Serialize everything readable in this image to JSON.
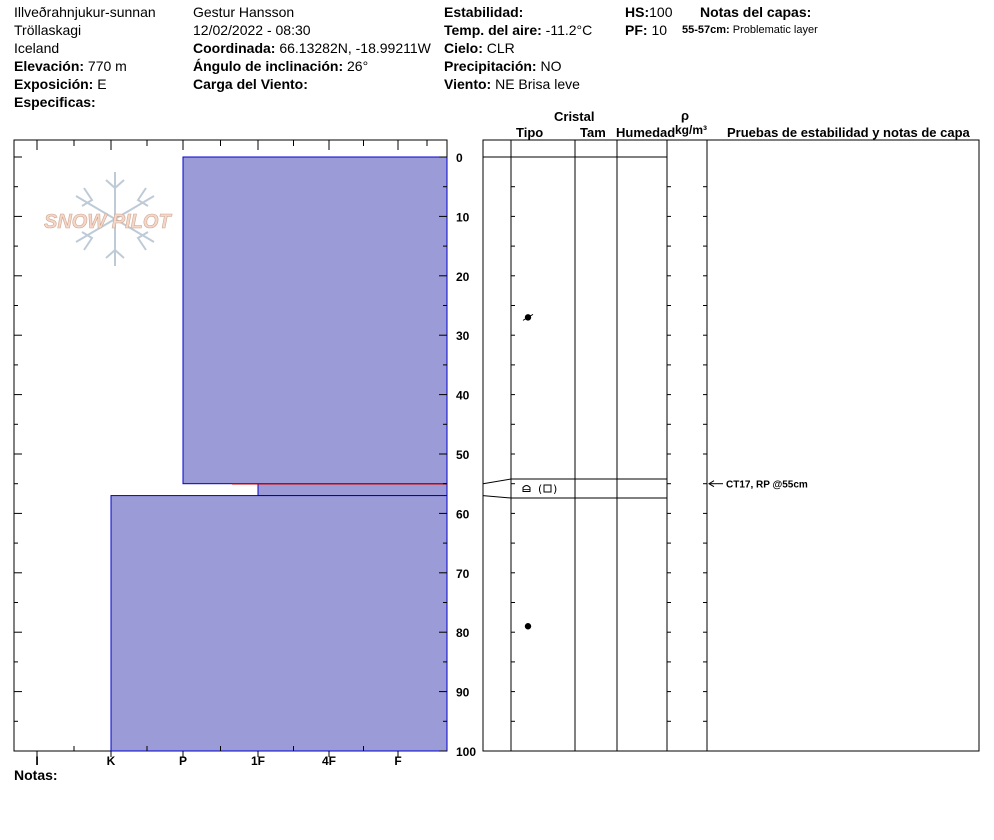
{
  "header": {
    "location": "Illveðrahnjukur-sunnan",
    "region": "Tröllaskagi",
    "country": "Iceland",
    "elevation_label": "Elevación:",
    "elevation": "770 m",
    "aspect_label": "Exposición:",
    "aspect": "E",
    "specifics_label": "Especificas:",
    "observer": "Gestur Hansson",
    "datetime": "12/02/2022 - 08:30",
    "coord_label": "Coordinada:",
    "coords": "66.13282N, -18.99211W",
    "slope_label": "Ángulo de inclinación:",
    "slope": "26°",
    "windload_label": "Carga del Viento:",
    "stability_label": "Estabilidad:",
    "airtemp_label": "Temp. del aire:",
    "airtemp": "-11.2°C",
    "sky_label": "Cielo:",
    "sky": "CLR",
    "precip_label": "Precipitación:",
    "precip": "NO",
    "wind_label": "Viento:",
    "wind": "NE Brisa leve",
    "hs_label": "HS:",
    "hs": "100",
    "pf_label": "PF:",
    "pf": "10",
    "layer_notes_label": "Notas del capas:",
    "layer_note_range": "55-57cm:",
    "layer_note_text": "Problematic layer"
  },
  "logo": {
    "text": "SNOW PILOT"
  },
  "columns": {
    "cristal": "Cristal",
    "tipo": "Tipo",
    "tam": "Tam",
    "humedad": "Humedad",
    "rho": "ρ",
    "density_unit": "kg/m³",
    "stability_tests": "Pruebas de estabilidad y notas de capa"
  },
  "notes_label": "Notas:",
  "test_note": "CT17, RP @55cm",
  "colors": {
    "layer_fill": "#9b9bd7",
    "layer_stroke": "#0000cc",
    "weak_line": "#cc0000"
  },
  "chart_data": {
    "type": "snow-profile",
    "hardness_labels": [
      "I",
      "K",
      "P",
      "1F",
      "4F",
      "F"
    ],
    "hardness_order": [
      "F",
      "4F",
      "1F",
      "P",
      "K",
      "I"
    ],
    "depth_range": [
      0,
      100
    ],
    "depth_ticks": [
      0,
      10,
      20,
      30,
      40,
      50,
      60,
      70,
      80,
      90,
      100
    ],
    "layers": [
      {
        "top": 0,
        "bottom": 55,
        "hardness": "P"
      },
      {
        "top": 55,
        "bottom": 57,
        "hardness": "1F",
        "note": "Problematic layer"
      },
      {
        "top": 57,
        "bottom": 100,
        "hardness": "K"
      }
    ],
    "grain_markers": [
      {
        "depth": 27,
        "symbol": "rounding-faceted"
      },
      {
        "depth": 56,
        "symbol": "faceted (box)"
      },
      {
        "depth": 79,
        "symbol": "rounded"
      }
    ],
    "stability_tests": [
      {
        "depth": 55,
        "label": "CT17, RP @55cm"
      }
    ]
  }
}
